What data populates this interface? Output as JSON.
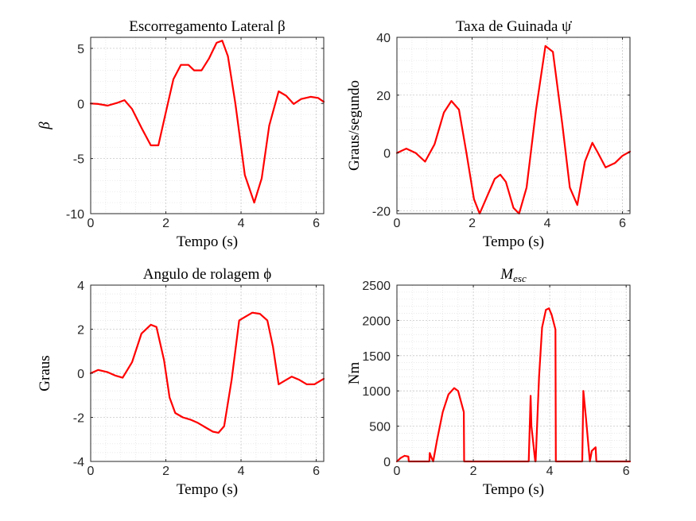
{
  "figure": {
    "background": "#ffffff",
    "line_color": "#ff0000"
  },
  "chart_data": [
    {
      "type": "line",
      "title": "Escorregamento Lateral β",
      "xlabel": "Tempo (s)",
      "ylabel": "β",
      "xlim": [
        0,
        6.2
      ],
      "ylim": [
        -10,
        6
      ],
      "xticks": [
        0,
        2,
        4,
        6
      ],
      "yticks": [
        -10,
        -5,
        0,
        5
      ],
      "xtick_labels": [
        "0",
        "2",
        "4",
        "6"
      ],
      "ytick_labels": [
        "-10",
        "-5",
        "0",
        "5"
      ],
      "grid": true,
      "minor_grid": true,
      "series": [
        {
          "color": "#ff0000",
          "x": [
            0,
            0.2,
            0.45,
            0.7,
            0.9,
            1.1,
            1.35,
            1.6,
            1.8,
            2.0,
            2.2,
            2.4,
            2.6,
            2.75,
            2.95,
            3.15,
            3.35,
            3.5,
            3.65,
            3.85,
            4.1,
            4.35,
            4.55,
            4.75,
            5.0,
            5.2,
            5.4,
            5.6,
            5.85,
            6.05,
            6.2
          ],
          "y": [
            0,
            -0.05,
            -0.2,
            0.05,
            0.3,
            -0.5,
            -2.2,
            -3.8,
            -3.8,
            -0.8,
            2.2,
            3.5,
            3.5,
            3.0,
            3.0,
            4.1,
            5.5,
            5.7,
            4.3,
            0.0,
            -6.5,
            -9.0,
            -6.8,
            -2.0,
            1.1,
            0.7,
            -0.05,
            0.4,
            0.6,
            0.5,
            0.15
          ]
        }
      ]
    },
    {
      "type": "line",
      "title": "Taxa de Guinada ψ̇",
      "xlabel": "Tempo (s)",
      "ylabel": "Graus/segundo",
      "xlim": [
        0,
        6.2
      ],
      "ylim": [
        -21,
        40
      ],
      "xticks": [
        0,
        2,
        4,
        6
      ],
      "yticks": [
        -20,
        0,
        20,
        40
      ],
      "xtick_labels": [
        "0",
        "2",
        "4",
        "6"
      ],
      "ytick_labels": [
        "-20",
        "0",
        "20",
        "40"
      ],
      "grid": true,
      "minor_grid": true,
      "series": [
        {
          "color": "#ff0000",
          "x": [
            0,
            0.25,
            0.5,
            0.75,
            1.0,
            1.25,
            1.45,
            1.65,
            1.85,
            2.05,
            2.2,
            2.4,
            2.6,
            2.75,
            2.9,
            3.1,
            3.25,
            3.45,
            3.7,
            3.95,
            4.15,
            4.4,
            4.6,
            4.8,
            5.0,
            5.2,
            5.35,
            5.55,
            5.8,
            6.0,
            6.2
          ],
          "y": [
            0,
            1.5,
            0,
            -3,
            3,
            14,
            18,
            15,
            0,
            -16,
            -21,
            -15,
            -9,
            -7.5,
            -10,
            -19,
            -21,
            -12,
            15,
            37,
            35,
            10,
            -12,
            -18,
            -3,
            3.5,
            0,
            -5,
            -3.5,
            -1,
            0.5
          ]
        }
      ]
    },
    {
      "type": "line",
      "title": "Angulo de rolagem ϕ",
      "xlabel": "Tempo (s)",
      "ylabel": "Graus",
      "xlim": [
        0,
        6.2
      ],
      "ylim": [
        -4,
        4
      ],
      "xticks": [
        0,
        2,
        4,
        6
      ],
      "yticks": [
        -4,
        -2,
        0,
        2,
        4
      ],
      "xtick_labels": [
        "0",
        "2",
        "4",
        "6"
      ],
      "ytick_labels": [
        "-4",
        "-2",
        "0",
        "2",
        "4"
      ],
      "grid": true,
      "minor_grid": true,
      "series": [
        {
          "color": "#ff0000",
          "x": [
            0,
            0.2,
            0.45,
            0.65,
            0.85,
            1.1,
            1.35,
            1.6,
            1.75,
            1.95,
            2.1,
            2.25,
            2.45,
            2.65,
            2.85,
            3.05,
            3.25,
            3.4,
            3.55,
            3.75,
            3.95,
            4.1,
            4.3,
            4.5,
            4.7,
            4.85,
            5.0,
            5.15,
            5.35,
            5.55,
            5.75,
            5.95,
            6.2
          ],
          "y": [
            0,
            0.15,
            0.05,
            -0.1,
            -0.2,
            0.5,
            1.8,
            2.2,
            2.1,
            0.6,
            -1.1,
            -1.8,
            -2.0,
            -2.1,
            -2.25,
            -2.45,
            -2.65,
            -2.7,
            -2.4,
            -0.3,
            2.4,
            2.55,
            2.75,
            2.7,
            2.4,
            1.2,
            -0.5,
            -0.35,
            -0.15,
            -0.3,
            -0.5,
            -0.5,
            -0.25
          ]
        }
      ]
    },
    {
      "type": "line",
      "title": "M_esc",
      "title_main": "M",
      "title_sub": "esc",
      "xlabel": "Tempo (s)",
      "ylabel": "Nm",
      "xlim": [
        0,
        6.1
      ],
      "ylim": [
        0,
        2500
      ],
      "xticks": [
        0,
        2,
        4,
        6
      ],
      "yticks": [
        0,
        500,
        1000,
        1500,
        2000,
        2500
      ],
      "xtick_labels": [
        "0",
        "2",
        "4",
        "6"
      ],
      "ytick_labels": [
        "0",
        "500",
        "1000",
        "1500",
        "2000",
        "2500"
      ],
      "grid": true,
      "minor_grid": true,
      "series": [
        {
          "color": "#ff0000",
          "x": [
            0,
            0.1,
            0.2,
            0.3,
            0.31,
            0.85,
            0.86,
            0.9,
            0.95,
            1.05,
            1.2,
            1.35,
            1.5,
            1.6,
            1.75,
            1.76,
            1.77,
            3.45,
            3.5,
            3.52,
            3.62,
            3.63,
            3.72,
            3.8,
            3.9,
            3.98,
            4.05,
            4.15,
            4.16,
            4.85,
            4.88,
            4.95,
            5.02,
            5.05,
            5.1,
            5.2,
            5.22,
            5.23,
            6.1
          ],
          "y": [
            0,
            50,
            80,
            70,
            0,
            0,
            120,
            60,
            0,
            300,
            700,
            950,
            1040,
            1000,
            700,
            0,
            0,
            0,
            930,
            500,
            0,
            0,
            1200,
            1900,
            2150,
            2170,
            2080,
            1870,
            0,
            0,
            1000,
            600,
            180,
            0,
            150,
            200,
            0,
            0,
            0
          ]
        }
      ]
    }
  ]
}
